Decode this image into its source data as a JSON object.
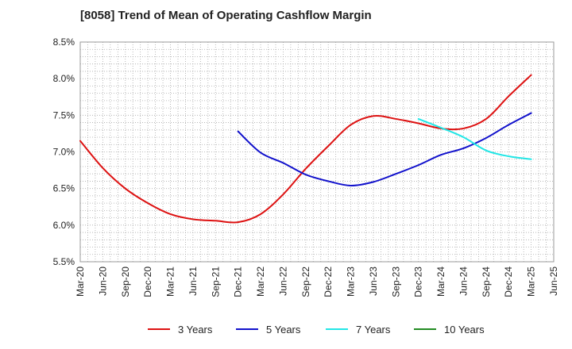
{
  "chart_data": {
    "type": "line",
    "title": "[8058]  Trend of Mean of Operating Cashflow Margin",
    "xlabel": "",
    "ylabel": "",
    "ylim": [
      5.5,
      8.5
    ],
    "grid": true,
    "legend_placement": "bottom",
    "categories": [
      "Mar-20",
      "Jun-20",
      "Sep-20",
      "Dec-20",
      "Mar-21",
      "Jun-21",
      "Sep-21",
      "Dec-21",
      "Mar-22",
      "Jun-22",
      "Sep-22",
      "Dec-22",
      "Mar-23",
      "Jun-23",
      "Sep-23",
      "Dec-23",
      "Mar-24",
      "Jun-24",
      "Sep-24",
      "Dec-24",
      "Mar-25",
      "Jun-25"
    ],
    "yticks": [
      "5.5%",
      "6.0%",
      "6.5%",
      "7.0%",
      "7.5%",
      "8.0%",
      "8.5%"
    ],
    "ytick_values": [
      5.5,
      6.0,
      6.5,
      7.0,
      7.5,
      8.0,
      8.5
    ],
    "series": [
      {
        "name": "3 Years",
        "color": "#dd1111",
        "values": [
          7.15,
          6.78,
          6.5,
          6.3,
          6.15,
          6.08,
          6.06,
          6.04,
          6.15,
          6.42,
          6.77,
          7.08,
          7.37,
          7.49,
          7.45,
          7.39,
          7.32,
          7.32,
          7.45,
          7.76,
          8.05,
          null
        ]
      },
      {
        "name": "5 Years",
        "color": "#1111cc",
        "values": [
          null,
          null,
          null,
          null,
          null,
          null,
          null,
          7.28,
          6.99,
          6.85,
          6.69,
          6.6,
          6.54,
          6.59,
          6.7,
          6.82,
          6.96,
          7.05,
          7.19,
          7.37,
          7.53,
          null
        ]
      },
      {
        "name": "7 Years",
        "color": "#22e6e6",
        "values": [
          null,
          null,
          null,
          null,
          null,
          null,
          null,
          null,
          null,
          null,
          null,
          null,
          null,
          null,
          null,
          7.45,
          7.33,
          7.2,
          7.02,
          6.94,
          6.9,
          null
        ]
      },
      {
        "name": "10 Years",
        "color": "#228b22",
        "values": [
          null,
          null,
          null,
          null,
          null,
          null,
          null,
          null,
          null,
          null,
          null,
          null,
          null,
          null,
          null,
          null,
          null,
          null,
          null,
          null,
          null,
          null
        ]
      }
    ]
  }
}
